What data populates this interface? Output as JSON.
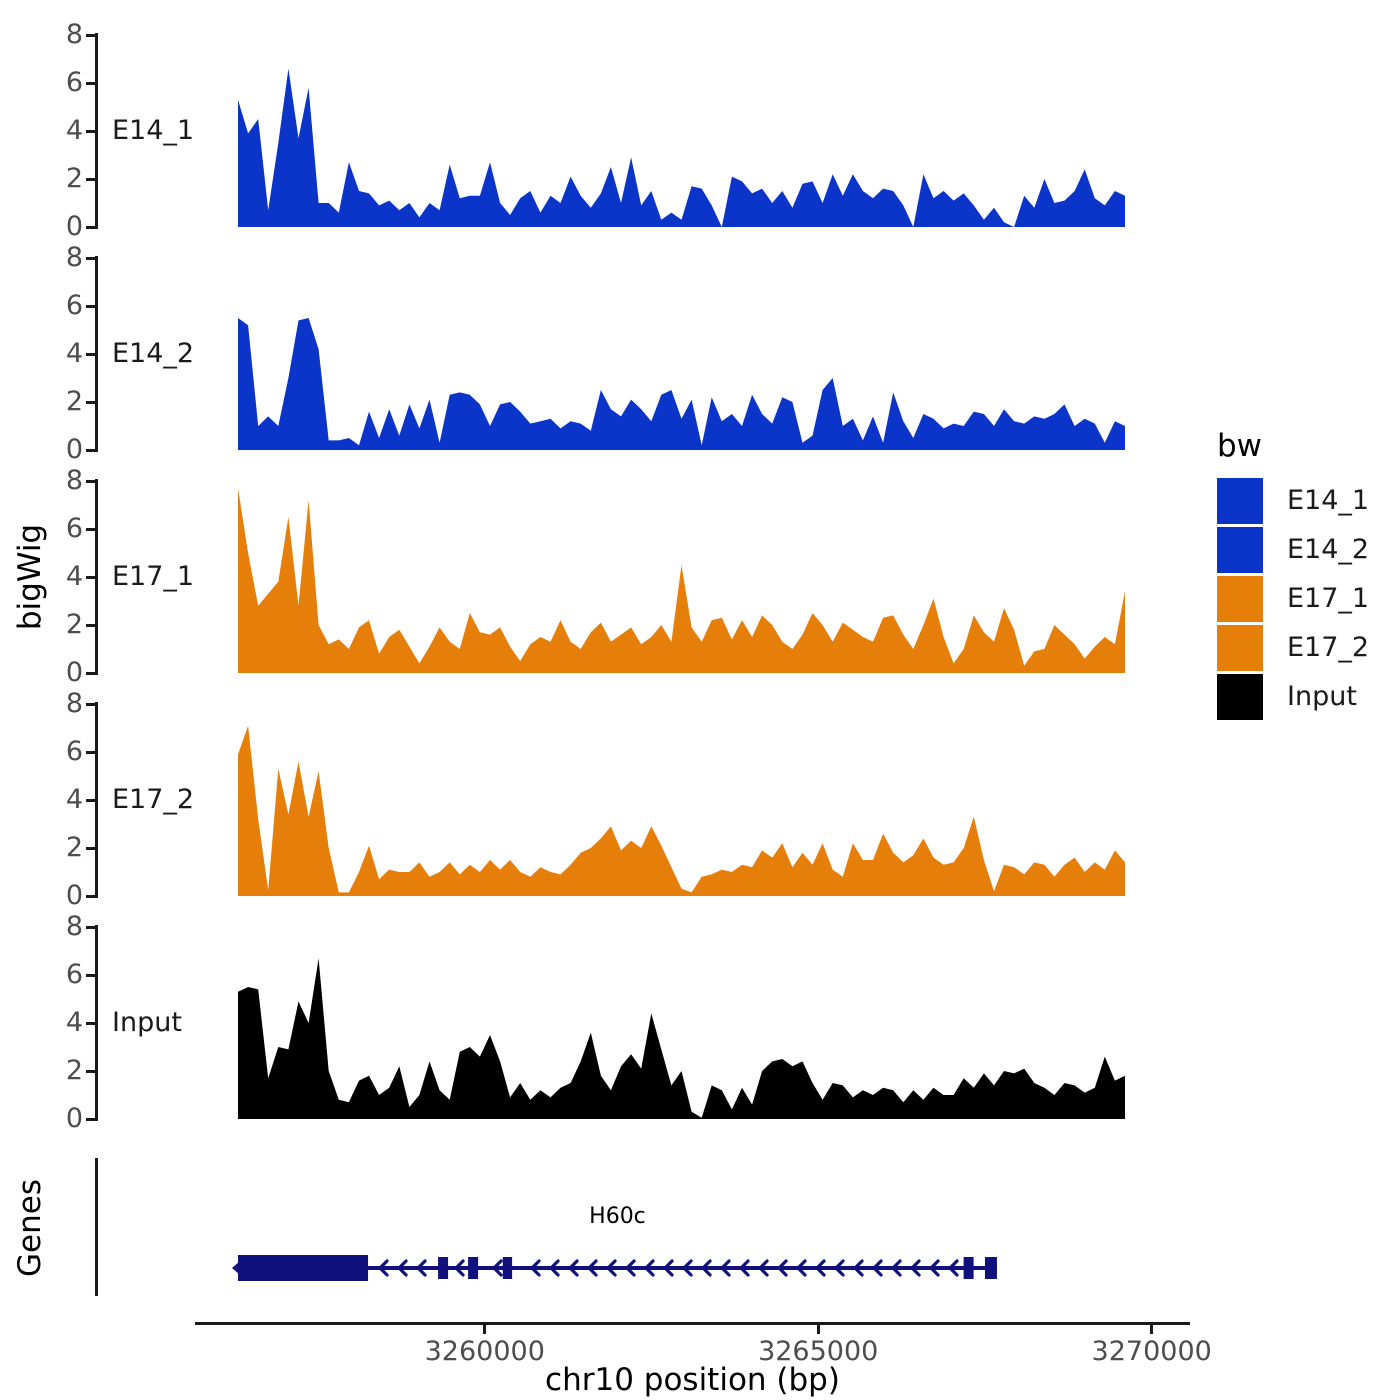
{
  "chart_data": {
    "type": "area",
    "xlabel": "chr10 position (bp)",
    "ylabel": "bigWig",
    "x_range": [
      3256300,
      3269600
    ],
    "x_ticks": [
      3260000,
      3265000,
      3270000
    ],
    "x_tick_labels": [
      "3260000",
      "3265000",
      "3270000"
    ],
    "y_ticks": [
      8,
      6,
      4,
      2,
      0
    ],
    "y_tick_labels": [
      "8",
      "6",
      "4",
      "2",
      "0"
    ],
    "ylim": [
      0,
      8
    ],
    "grid": "off",
    "legend_position": "right",
    "tracks": [
      {
        "label": "E14_1",
        "color": "#0b34c8",
        "values": [
          5.3,
          3.9,
          4.5,
          0.7,
          3.5,
          6.6,
          3.7,
          5.8,
          1.0,
          1.0,
          0.6,
          2.7,
          1.5,
          1.4,
          0.9,
          1.1,
          0.7,
          1.0,
          0.4,
          1.0,
          0.7,
          2.6,
          1.2,
          1.3,
          1.3,
          2.7,
          1.0,
          0.5,
          1.2,
          1.5,
          0.6,
          1.3,
          1.0,
          2.1,
          1.3,
          0.8,
          1.4,
          2.5,
          1.0,
          2.9,
          0.9,
          1.5,
          0.3,
          0.6,
          0.3,
          1.7,
          1.6,
          0.9,
          0,
          2.1,
          1.9,
          1.4,
          1.6,
          1.0,
          1.5,
          0.8,
          1.8,
          1.9,
          1.0,
          2.2,
          1.3,
          2.2,
          1.5,
          1.2,
          1.6,
          1.5,
          0.9,
          0,
          2.2,
          1.2,
          1.5,
          1.1,
          1.4,
          0.9,
          0.3,
          0.8,
          0.2,
          0,
          1.3,
          0.8,
          2.0,
          1.0,
          1.1,
          1.5,
          2.4,
          1.2,
          0.9,
          1.5,
          1.3
        ]
      },
      {
        "label": "E14_2",
        "color": "#0b34c8",
        "values": [
          5.5,
          5.2,
          1.0,
          1.4,
          1.0,
          3.0,
          5.4,
          5.5,
          4.2,
          0.4,
          0.4,
          0.5,
          0.2,
          1.6,
          0.5,
          1.7,
          0.6,
          1.9,
          0.9,
          2.1,
          0.3,
          2.3,
          2.4,
          2.3,
          1.9,
          1.0,
          1.9,
          2.0,
          1.6,
          1.1,
          1.2,
          1.3,
          0.9,
          1.2,
          1.1,
          0.8,
          2.5,
          1.7,
          1.4,
          2.1,
          1.7,
          1.2,
          2.3,
          2.5,
          1.3,
          2.1,
          0.2,
          2.2,
          1.2,
          1.5,
          1.0,
          2.3,
          1.5,
          1.1,
          2.2,
          2.0,
          0.3,
          0.6,
          2.5,
          3.0,
          1.0,
          1.3,
          0.4,
          1.4,
          0.3,
          2.4,
          1.2,
          0.5,
          1.5,
          1.3,
          0.9,
          1.1,
          1.0,
          1.6,
          1.5,
          1.0,
          1.7,
          1.2,
          1.1,
          1.4,
          1.3,
          1.5,
          1.9,
          1.0,
          1.3,
          1.1,
          0.3,
          1.2,
          1.0
        ]
      },
      {
        "label": "E17_1",
        "color": "#e67e0a",
        "values": [
          7.7,
          5.0,
          2.8,
          3.3,
          3.8,
          6.5,
          2.8,
          7.2,
          2.0,
          1.2,
          1.4,
          1.0,
          1.9,
          2.2,
          0.8,
          1.5,
          1.8,
          1.1,
          0.4,
          1.1,
          1.9,
          1.3,
          1.0,
          2.5,
          1.7,
          1.6,
          1.9,
          1.1,
          0.5,
          1.2,
          1.5,
          1.3,
          2.2,
          1.3,
          1.0,
          1.7,
          2.1,
          1.3,
          1.6,
          1.9,
          1.2,
          1.5,
          2.0,
          1.3,
          4.5,
          1.9,
          1.3,
          2.2,
          2.3,
          1.4,
          2.2,
          1.5,
          2.4,
          2.0,
          1.3,
          1.0,
          1.6,
          2.5,
          2.0,
          1.3,
          2.1,
          1.8,
          1.5,
          1.3,
          2.3,
          2.4,
          1.6,
          1.0,
          2.0,
          3.1,
          1.5,
          0.4,
          1.0,
          2.4,
          1.7,
          1.3,
          2.7,
          1.8,
          0.3,
          0.9,
          1.0,
          2.0,
          1.6,
          1.2,
          0.6,
          1.1,
          1.5,
          1.2,
          3.4
        ]
      },
      {
        "label": "E17_2",
        "color": "#e67e0a",
        "values": [
          5.9,
          7.1,
          3.2,
          0.25,
          5.3,
          3.4,
          5.6,
          3.3,
          5.2,
          2.0,
          0.15,
          0.15,
          1.0,
          2.1,
          0.7,
          1.1,
          1.0,
          1.0,
          1.4,
          0.8,
          1.0,
          1.4,
          0.9,
          1.3,
          1.0,
          1.5,
          1.1,
          1.5,
          1.0,
          0.8,
          1.2,
          1.0,
          0.9,
          1.3,
          1.8,
          2.0,
          2.4,
          2.9,
          1.9,
          2.3,
          2.0,
          2.9,
          2.1,
          1.2,
          0.3,
          0.15,
          0.8,
          0.9,
          1.1,
          1.0,
          1.3,
          1.2,
          1.9,
          1.6,
          2.2,
          1.2,
          1.8,
          1.3,
          2.2,
          1.1,
          0.8,
          2.2,
          1.5,
          1.5,
          2.6,
          1.8,
          1.4,
          1.7,
          2.4,
          1.6,
          1.3,
          1.4,
          2.0,
          3.3,
          1.5,
          0.2,
          1.3,
          1.2,
          0.9,
          1.4,
          1.3,
          0.8,
          1.3,
          1.6,
          1.0,
          1.4,
          1.1,
          1.9,
          1.4
        ]
      },
      {
        "label": "Input",
        "color": "#000000",
        "values": [
          5.3,
          5.5,
          5.4,
          1.7,
          3.0,
          2.9,
          4.9,
          4.0,
          6.7,
          2.0,
          0.8,
          0.7,
          1.6,
          1.8,
          1.0,
          1.3,
          2.2,
          0.5,
          1.0,
          2.4,
          1.2,
          0.8,
          2.8,
          3.0,
          2.6,
          3.5,
          2.4,
          0.9,
          1.5,
          0.8,
          1.2,
          0.9,
          1.3,
          1.5,
          2.4,
          3.6,
          1.8,
          1.2,
          2.2,
          2.7,
          2.1,
          4.4,
          2.9,
          1.4,
          2.0,
          0.3,
          0.05,
          1.4,
          1.2,
          0.4,
          1.3,
          0.6,
          2.0,
          2.4,
          2.5,
          2.2,
          2.4,
          1.5,
          0.8,
          1.5,
          1.4,
          0.9,
          1.2,
          1.0,
          1.3,
          1.2,
          0.7,
          1.2,
          0.8,
          1.3,
          1.0,
          1.0,
          1.7,
          1.3,
          1.9,
          1.4,
          2.0,
          1.9,
          2.1,
          1.5,
          1.3,
          1.0,
          1.5,
          1.4,
          1.1,
          1.3,
          2.6,
          1.6,
          1.8
        ]
      }
    ],
    "genes_track": {
      "label": "Genes",
      "gene": {
        "name": "H60c",
        "strand": "-",
        "start": 3256300,
        "end": 3267680,
        "color": "#11117e",
        "exons": [
          [
            3256300,
            3258250
          ],
          [
            3259300,
            3259450
          ],
          [
            3259750,
            3259900
          ],
          [
            3260270,
            3260410
          ],
          [
            3267180,
            3267330
          ],
          [
            3267500,
            3267680
          ]
        ]
      }
    },
    "legend": {
      "title": "bw",
      "entries": [
        {
          "label": "E14_1",
          "color": "#0b34c8"
        },
        {
          "label": "E14_2",
          "color": "#0b34c8"
        },
        {
          "label": "E17_1",
          "color": "#e67e0a"
        },
        {
          "label": "E17_2",
          "color": "#e67e0a"
        },
        {
          "label": "Input",
          "color": "#000000"
        }
      ]
    }
  }
}
